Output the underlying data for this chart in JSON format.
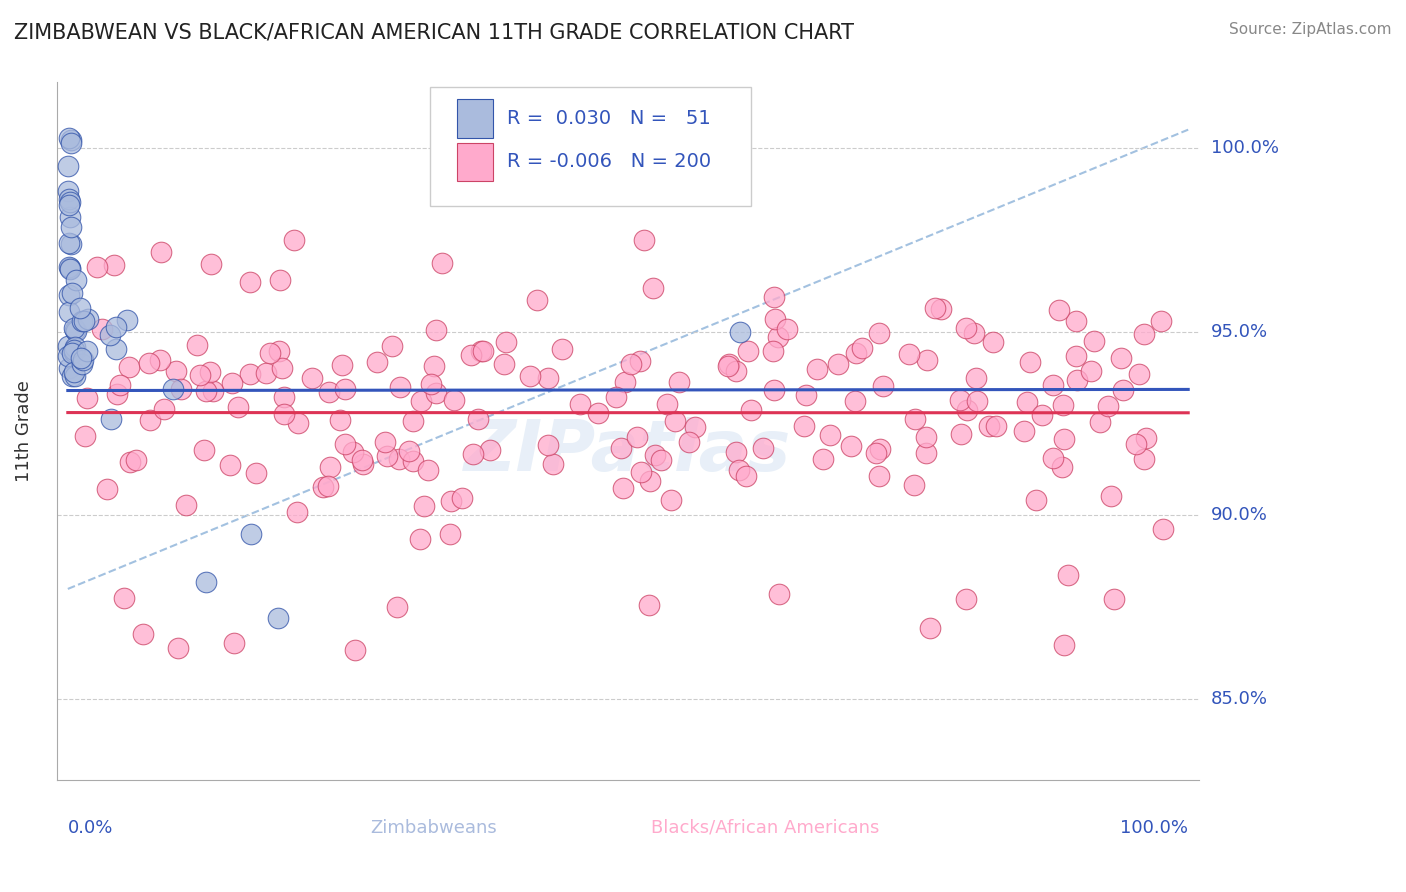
{
  "title": "ZIMBABWEAN VS BLACK/AFRICAN AMERICAN 11TH GRADE CORRELATION CHART",
  "source": "Source: ZipAtlas.com",
  "ylabel": "11th Grade",
  "ylim": [
    0.828,
    1.018
  ],
  "xlim": [
    -0.01,
    1.01
  ],
  "yticks": [
    0.85,
    0.9,
    0.95,
    1.0
  ],
  "ytick_labels": [
    "85.0%",
    "90.0%",
    "95.0%",
    "100.0%"
  ],
  "blue_fill": "#AABBDD",
  "blue_edge": "#3355AA",
  "pink_fill": "#FFAACC",
  "pink_edge": "#CC4466",
  "trend_blue": "#3355BB",
  "trend_pink": "#DD3355",
  "dash_color": "#99BBDD",
  "label_color": "#3355BB",
  "grid_color": "#CCCCCC",
  "title_color": "#222222",
  "source_color": "#888888",
  "watermark": "ZIPatlas"
}
